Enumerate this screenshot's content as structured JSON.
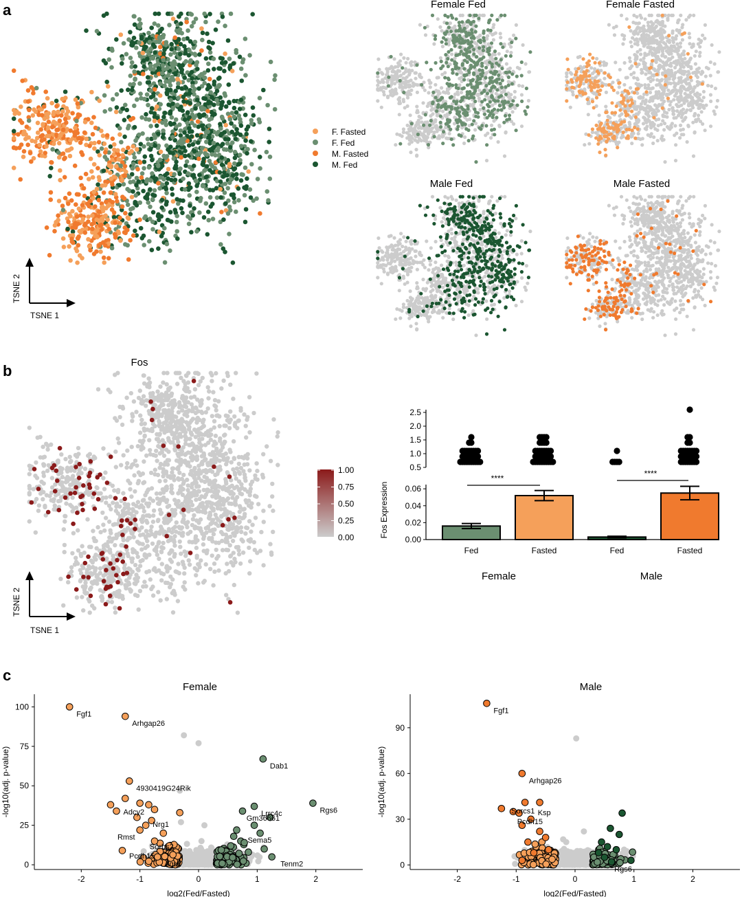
{
  "panel_labels": [
    "a",
    "b",
    "c"
  ],
  "colors": {
    "f_fasted": "#F5A05A",
    "f_fed": "#6B8F71",
    "m_fasted": "#F07A2E",
    "m_fed": "#1B5631",
    "grey": "#CCCCCC",
    "fos_high": "#8B1A1A"
  },
  "chart_data": [
    {
      "type": "scatter",
      "panel": "a",
      "xlabel": "TSNE 1",
      "ylabel": "TSNE 2",
      "legend_placement": "right",
      "series": [
        {
          "name": "F. Fasted",
          "color": "#F5A05A"
        },
        {
          "name": "F. Fed",
          "color": "#6B8F71"
        },
        {
          "name": "M. Fasted",
          "color": "#F07A2E"
        },
        {
          "name": "M. Fed",
          "color": "#1B5631"
        }
      ],
      "small_multiples": [
        "Female Fed",
        "Female Fasted",
        "Male Fed",
        "Male Fasted"
      ]
    },
    {
      "type": "scatter",
      "panel": "b",
      "title": "Fos",
      "xlabel": "TSNE 1",
      "ylabel": "TSNE 2",
      "colorbar": {
        "ticks": [
          "1.00",
          "0.75",
          "0.50",
          "0.25",
          "0.00"
        ],
        "low": "#CCCCCC",
        "high": "#8B1A1A"
      }
    },
    {
      "type": "bar",
      "panel": "b",
      "ylabel": "Fos Expression",
      "categories": [
        "Fed",
        "Fasted",
        "Fed",
        "Fasted"
      ],
      "groups": [
        "Female",
        "Male"
      ],
      "values": [
        0.016,
        0.052,
        0.003,
        0.055
      ],
      "errors": [
        0.003,
        0.006,
        0.001,
        0.008
      ],
      "colors": [
        "#6B8F71",
        "#F5A05A",
        "#1B5631",
        "#F07A2E"
      ],
      "ylim_lower": [
        0,
        0.065
      ],
      "ylim_upper": [
        0.5,
        2.5
      ],
      "yticks_lower": [
        "0.00",
        "0.02",
        "0.04",
        "0.06"
      ],
      "yticks_upper": [
        "0.5",
        "1.0",
        "1.5",
        "2.0",
        "2.5"
      ],
      "significance": [
        "****",
        "****"
      ],
      "outliers": [
        [
          0.7,
          0.7,
          0.7,
          0.7,
          0.7,
          0.7,
          0.7,
          0.7,
          0.7,
          0.7,
          0.9,
          0.9,
          0.9,
          0.9,
          0.9,
          0.9,
          0.9,
          0.9,
          1.1,
          1.1,
          1.1,
          1.1,
          1.1,
          1.1,
          1.1,
          1.1,
          1.4,
          1.4,
          1.6
        ],
        [
          0.7,
          0.7,
          0.7,
          0.7,
          0.7,
          0.7,
          0.7,
          0.7,
          0.7,
          0.7,
          0.9,
          0.9,
          0.9,
          0.9,
          0.9,
          0.9,
          0.9,
          0.9,
          1.1,
          1.1,
          1.1,
          1.1,
          1.1,
          1.1,
          1.1,
          1.1,
          1.4,
          1.4,
          1.4,
          1.4,
          1.6,
          1.6,
          1.6,
          1.6
        ],
        [
          0.7,
          0.7,
          0.7,
          0.7,
          1.1
        ],
        [
          0.7,
          0.7,
          0.7,
          0.7,
          0.7,
          0.7,
          0.7,
          0.7,
          0.9,
          0.9,
          0.9,
          0.9,
          0.9,
          0.9,
          0.9,
          0.9,
          1.1,
          1.1,
          1.1,
          1.1,
          1.1,
          1.1,
          1.1,
          1.1,
          1.4,
          1.4,
          1.6,
          1.6,
          2.6
        ]
      ]
    },
    {
      "type": "scatter",
      "panel": "c",
      "title": "Female",
      "xlabel": "log2(Fed/Fasted)",
      "ylabel": "-log10(adj. p-value)",
      "xlim": [
        -2.8,
        2.8
      ],
      "ylim": [
        -3,
        108
      ],
      "xticks": [
        -2,
        -1,
        0,
        1,
        2
      ],
      "yticks": [
        0,
        25,
        50,
        75,
        100
      ],
      "labels": [
        {
          "text": "Fgf1",
          "x": -2.2,
          "y": 100
        },
        {
          "text": "Arhgap26",
          "x": -1.25,
          "y": 94
        },
        {
          "text": "4930419G24Rik",
          "x": -1.18,
          "y": 53
        },
        {
          "text": "Adcy2",
          "x": -1.4,
          "y": 38
        },
        {
          "text": "Nrg1",
          "x": -0.9,
          "y": 30
        },
        {
          "text": "Rmst",
          "x": -1.5,
          "y": 22
        },
        {
          "text": "Sorbs2",
          "x": -0.95,
          "y": 16
        },
        {
          "text": "Pcdh15",
          "x": -1.3,
          "y": 10
        },
        {
          "text": "Agrp",
          "x": -0.7,
          "y": 5
        },
        {
          "text": "Dab1",
          "x": 1.1,
          "y": 67
        },
        {
          "text": "Lrrc4c",
          "x": 0.95,
          "y": 37
        },
        {
          "text": "Rgs6",
          "x": 1.95,
          "y": 39
        },
        {
          "text": "Gm36661",
          "x": 0.7,
          "y": 34
        },
        {
          "text": "Sema5",
          "x": 0.72,
          "y": 20
        },
        {
          "text": "Tenm2",
          "x": 1.28,
          "y": 5
        }
      ],
      "points_up": [
        {
          "x": 0.65,
          "y": 22
        },
        {
          "x": 0.6,
          "y": 18
        },
        {
          "x": 0.72,
          "y": 15
        },
        {
          "x": 0.55,
          "y": 12
        },
        {
          "x": 0.78,
          "y": 14
        },
        {
          "x": 0.95,
          "y": 25
        },
        {
          "x": 1.05,
          "y": 20
        },
        {
          "x": 1.22,
          "y": 30
        },
        {
          "x": 1.12,
          "y": 10
        },
        {
          "x": 0.85,
          "y": 8
        },
        {
          "x": 1.1,
          "y": 67
        },
        {
          "x": 0.95,
          "y": 37
        },
        {
          "x": 1.95,
          "y": 39
        },
        {
          "x": 0.75,
          "y": 34
        },
        {
          "x": 1.25,
          "y": 5
        }
      ],
      "points_down": [
        {
          "x": -2.2,
          "y": 100
        },
        {
          "x": -1.25,
          "y": 94
        },
        {
          "x": -1.18,
          "y": 53
        },
        {
          "x": -1.5,
          "y": 38
        },
        {
          "x": -1.25,
          "y": 42
        },
        {
          "x": -1.4,
          "y": 34
        },
        {
          "x": -0.85,
          "y": 38
        },
        {
          "x": -1.0,
          "y": 39
        },
        {
          "x": -1.05,
          "y": 30
        },
        {
          "x": -0.75,
          "y": 35
        },
        {
          "x": -0.32,
          "y": 33
        },
        {
          "x": -1.0,
          "y": 22
        },
        {
          "x": -0.9,
          "y": 25
        },
        {
          "x": -1.3,
          "y": 9
        },
        {
          "x": -0.75,
          "y": 15
        },
        {
          "x": -0.7,
          "y": 5
        },
        {
          "x": -0.6,
          "y": 20
        },
        {
          "x": -0.8,
          "y": 28
        },
        {
          "x": -0.5,
          "y": 12
        }
      ],
      "points_ns": [
        {
          "x": -0.25,
          "y": 82
        },
        {
          "x": 0.0,
          "y": 77
        },
        {
          "x": -0.32,
          "y": 47
        },
        {
          "x": -0.3,
          "y": 27
        },
        {
          "x": 0.1,
          "y": 25
        },
        {
          "x": 0.05,
          "y": 15
        }
      ]
    },
    {
      "type": "scatter",
      "panel": "c",
      "title": "Male",
      "xlabel": "log2(Fed/Fasted)",
      "ylabel": "-log10(adj. p-value)",
      "xlim": [
        -2.8,
        2.8
      ],
      "ylim": [
        -3,
        112
      ],
      "xticks": [
        -2,
        -1,
        0,
        1,
        2
      ],
      "yticks": [
        0,
        30,
        60,
        90
      ],
      "labels": [
        {
          "text": "Fgf1",
          "x": -1.5,
          "y": 106
        },
        {
          "text": "Arhgap26",
          "x": -0.9,
          "y": 60
        },
        {
          "text": "Sorcs1",
          "x": -1.2,
          "y": 40
        },
        {
          "text": "Ksp",
          "x": -0.75,
          "y": 39
        },
        {
          "text": "Pcdh15",
          "x": -1.1,
          "y": 33
        },
        {
          "text": "Rgs6",
          "x": 0.55,
          "y": 2
        }
      ],
      "points_up": [
        {
          "x": 0.8,
          "y": 34
        },
        {
          "x": 0.6,
          "y": 24
        },
        {
          "x": 0.75,
          "y": 20
        },
        {
          "x": 0.45,
          "y": 15
        },
        {
          "x": 0.55,
          "y": 12
        },
        {
          "x": 0.7,
          "y": 10
        },
        {
          "x": 0.4,
          "y": 8
        },
        {
          "x": 0.95,
          "y": 3
        },
        {
          "x": 0.5,
          "y": 5
        },
        {
          "x": 0.62,
          "y": 2
        }
      ],
      "points_down": [
        {
          "x": -1.5,
          "y": 106
        },
        {
          "x": -0.9,
          "y": 60
        },
        {
          "x": -1.25,
          "y": 37
        },
        {
          "x": -1.05,
          "y": 35
        },
        {
          "x": -0.85,
          "y": 41
        },
        {
          "x": -0.6,
          "y": 41
        },
        {
          "x": -0.95,
          "y": 34
        },
        {
          "x": -0.75,
          "y": 30
        },
        {
          "x": -0.9,
          "y": 26
        },
        {
          "x": -0.6,
          "y": 22
        },
        {
          "x": -0.8,
          "y": 15
        },
        {
          "x": -0.5,
          "y": 18
        },
        {
          "x": -0.7,
          "y": 8
        },
        {
          "x": -0.9,
          "y": 3
        },
        {
          "x": -0.45,
          "y": 10
        }
      ],
      "points_ns": [
        {
          "x": 0.02,
          "y": 83
        },
        {
          "x": 0.15,
          "y": 22
        },
        {
          "x": -0.15,
          "y": 15
        }
      ]
    }
  ]
}
